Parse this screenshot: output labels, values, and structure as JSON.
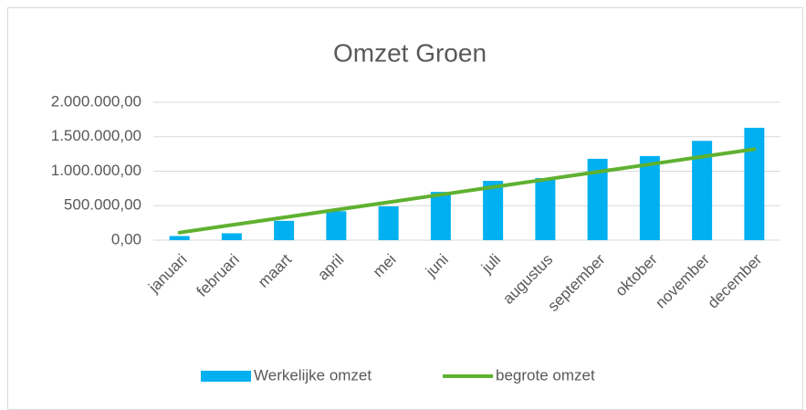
{
  "chart_data": {
    "type": "bar",
    "title": "Omzet Groen",
    "categories": [
      "januari",
      "februari",
      "maart",
      "april",
      "mei",
      "juni",
      "juli",
      "augustus",
      "september",
      "oktober",
      "november",
      "december"
    ],
    "series": [
      {
        "name": "Werkelijke omzet",
        "color": "#00b0f0",
        "values": [
          60000,
          100000,
          280000,
          420000,
          490000,
          700000,
          860000,
          900000,
          1180000,
          1220000,
          1440000,
          1630000
        ]
      },
      {
        "name": "begrote omzet",
        "color": "#5fb130",
        "type": "line",
        "values": [
          110000,
          220000,
          330000,
          440000,
          550000,
          660000,
          770000,
          880000,
          990000,
          1100000,
          1210000,
          1320000
        ]
      }
    ],
    "ylim": [
      0,
      2000000
    ],
    "yticks": [
      {
        "value": 0,
        "label": "0,00"
      },
      {
        "value": 500000,
        "label": "500.000,00"
      },
      {
        "value": 1000000,
        "label": "1.000.000,00"
      },
      {
        "value": 1500000,
        "label": "1.500.000,00"
      },
      {
        "value": 2000000,
        "label": "2.000.000,00"
      }
    ],
    "grid": true,
    "legend": "bottom"
  }
}
